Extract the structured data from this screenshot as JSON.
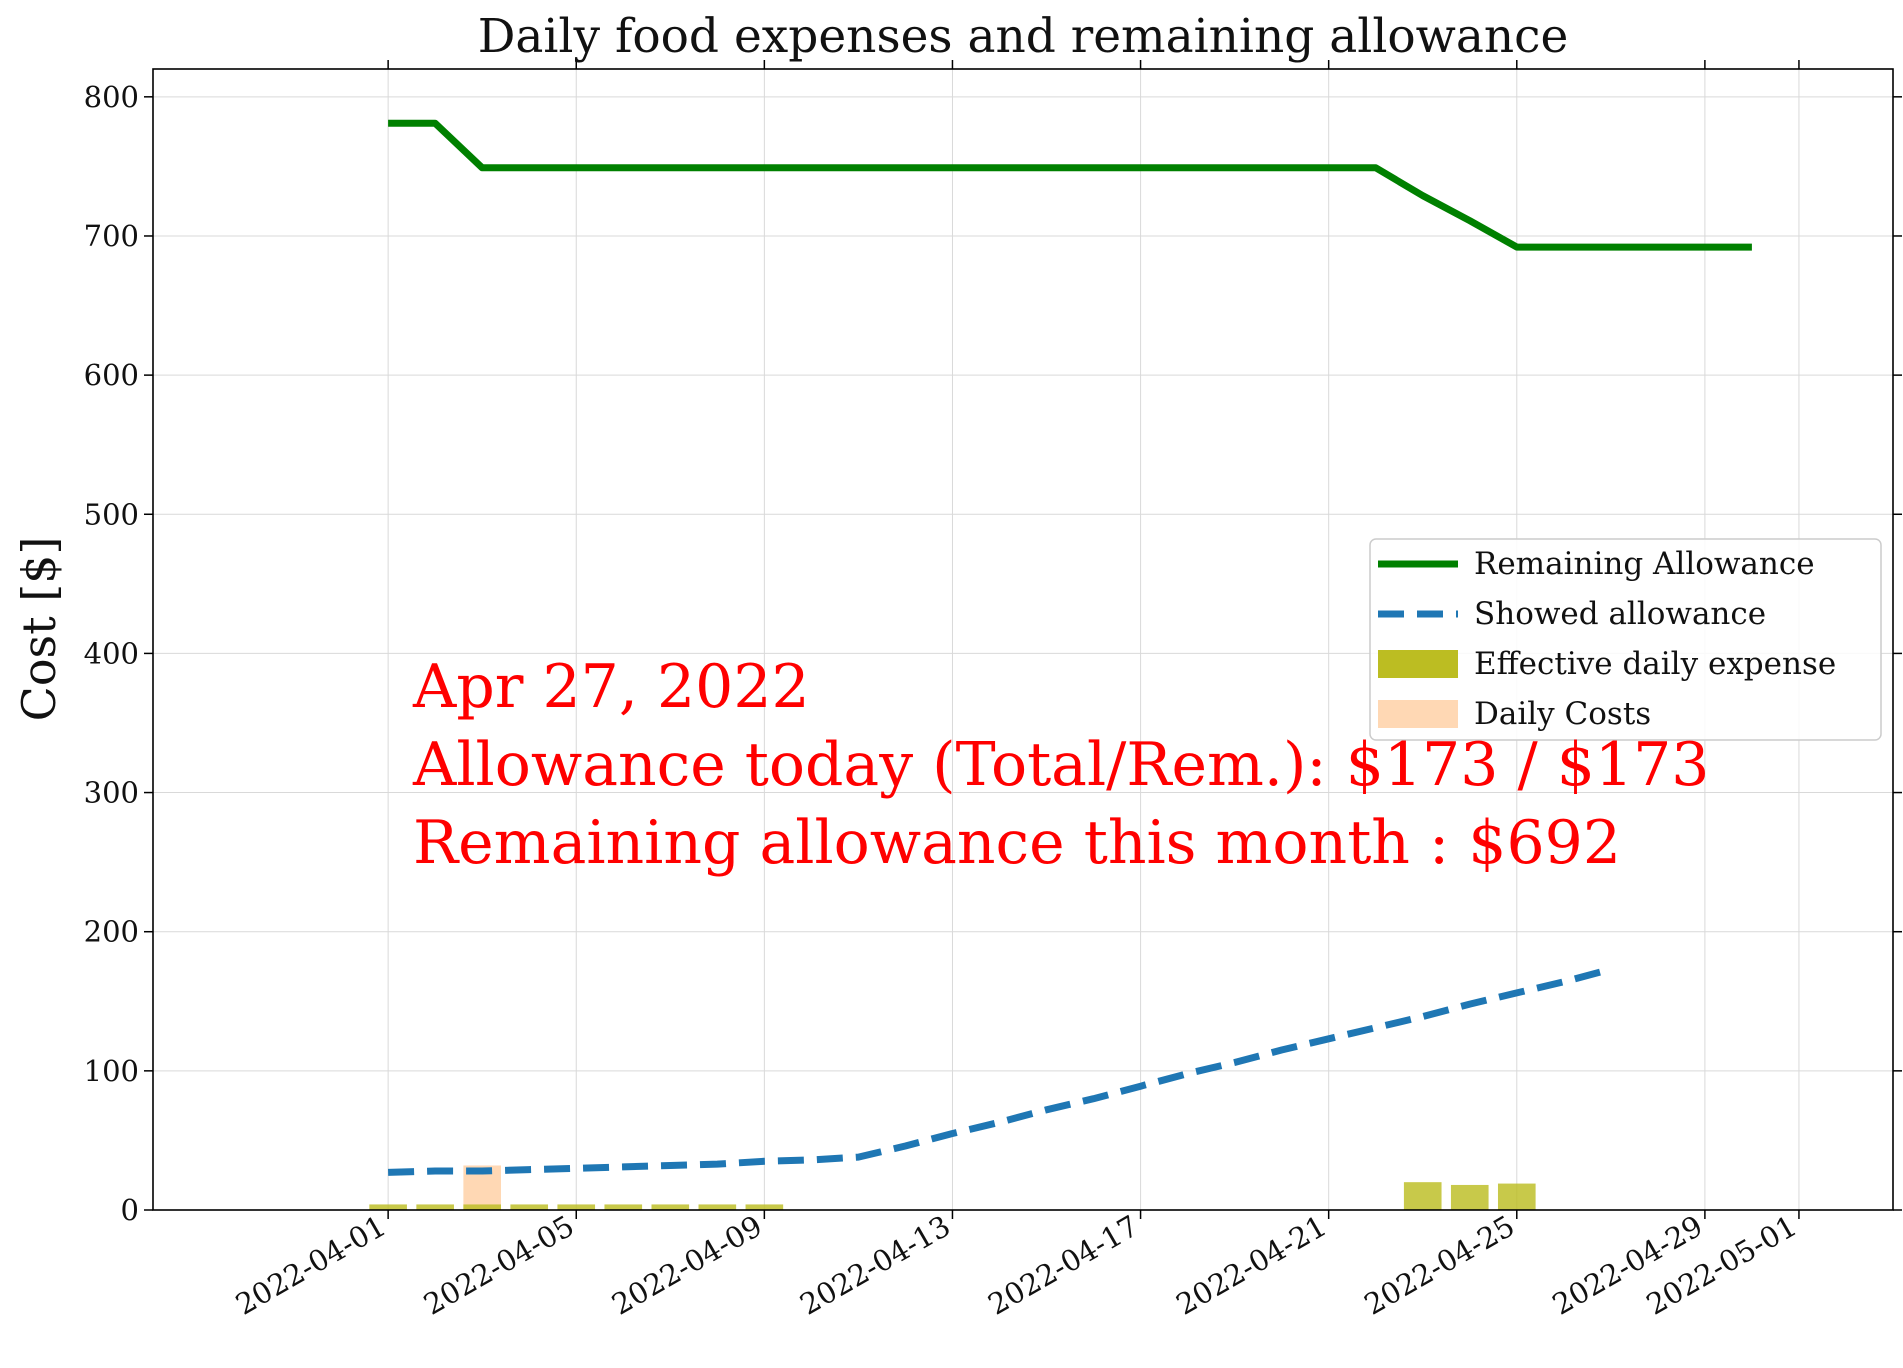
{
  "chart_data": {
    "type": "line",
    "title": "Daily food expenses and remaining allowance",
    "xlabel": "",
    "ylabel": "Cost [$]",
    "x_axis": {
      "type": "date",
      "range": [
        "2022-03-27",
        "2022-05-03"
      ],
      "tick_labels": [
        "2022-04-01",
        "2022-04-05",
        "2022-04-09",
        "2022-04-13",
        "2022-04-17",
        "2022-04-21",
        "2022-04-25",
        "2022-04-29",
        "2022-05-01"
      ]
    },
    "y_axis": {
      "range": [
        0,
        820
      ],
      "ticks": [
        0,
        100,
        200,
        300,
        400,
        500,
        600,
        700,
        800
      ],
      "tick_labels": [
        "0",
        "100",
        "200",
        "300",
        "400",
        "500",
        "600",
        "700",
        "800"
      ]
    },
    "grid": true,
    "legend_position": "center-right",
    "legend": [
      {
        "label": "Remaining Allowance",
        "kind": "line",
        "color": "#008000",
        "dash": false
      },
      {
        "label": "Showed allowance",
        "kind": "line",
        "color": "#1f77b4",
        "dash": true
      },
      {
        "label": "Effective daily expense",
        "kind": "bar",
        "color": "#bcbd22"
      },
      {
        "label": "Daily Costs",
        "kind": "bar",
        "color": "#ffd8b4"
      }
    ],
    "series": [
      {
        "name": "Remaining Allowance",
        "type": "line",
        "color": "#008000",
        "points": [
          [
            "2022-04-01",
            781
          ],
          [
            "2022-04-02",
            781
          ],
          [
            "2022-04-03",
            749
          ],
          [
            "2022-04-04",
            749
          ],
          [
            "2022-04-05",
            749
          ],
          [
            "2022-04-06",
            749
          ],
          [
            "2022-04-07",
            749
          ],
          [
            "2022-04-08",
            749
          ],
          [
            "2022-04-09",
            749
          ],
          [
            "2022-04-10",
            749
          ],
          [
            "2022-04-11",
            749
          ],
          [
            "2022-04-12",
            749
          ],
          [
            "2022-04-13",
            749
          ],
          [
            "2022-04-14",
            749
          ],
          [
            "2022-04-15",
            749
          ],
          [
            "2022-04-16",
            749
          ],
          [
            "2022-04-17",
            749
          ],
          [
            "2022-04-18",
            749
          ],
          [
            "2022-04-19",
            749
          ],
          [
            "2022-04-20",
            749
          ],
          [
            "2022-04-21",
            749
          ],
          [
            "2022-04-22",
            749
          ],
          [
            "2022-04-23",
            729
          ],
          [
            "2022-04-24",
            711
          ],
          [
            "2022-04-25",
            692
          ],
          [
            "2022-04-26",
            692
          ],
          [
            "2022-04-27",
            692
          ],
          [
            "2022-04-28",
            692
          ],
          [
            "2022-04-29",
            692
          ],
          [
            "2022-04-30",
            692
          ]
        ]
      },
      {
        "name": "Showed allowance",
        "type": "line",
        "dashed": true,
        "color": "#1f77b4",
        "points": [
          [
            "2022-04-01",
            27
          ],
          [
            "2022-04-02",
            28
          ],
          [
            "2022-04-03",
            28
          ],
          [
            "2022-04-04",
            29
          ],
          [
            "2022-04-05",
            30
          ],
          [
            "2022-04-06",
            31
          ],
          [
            "2022-04-07",
            32
          ],
          [
            "2022-04-08",
            33
          ],
          [
            "2022-04-09",
            35
          ],
          [
            "2022-04-10",
            36
          ],
          [
            "2022-04-11",
            38
          ],
          [
            "2022-04-12",
            46
          ],
          [
            "2022-04-13",
            55
          ],
          [
            "2022-04-14",
            63
          ],
          [
            "2022-04-15",
            72
          ],
          [
            "2022-04-16",
            80
          ],
          [
            "2022-04-17",
            89
          ],
          [
            "2022-04-18",
            98
          ],
          [
            "2022-04-19",
            106
          ],
          [
            "2022-04-20",
            115
          ],
          [
            "2022-04-21",
            123
          ],
          [
            "2022-04-22",
            131
          ],
          [
            "2022-04-23",
            139
          ],
          [
            "2022-04-24",
            148
          ],
          [
            "2022-04-25",
            156
          ],
          [
            "2022-04-26",
            164
          ],
          [
            "2022-04-27",
            173
          ]
        ]
      },
      {
        "name": "Daily Costs",
        "type": "bar",
        "color": "#ffd8b4",
        "points": [
          [
            "2022-04-03",
            32
          ]
        ]
      },
      {
        "name": "Effective daily expense",
        "type": "bar",
        "color": "#bcbd22",
        "points": [
          [
            "2022-04-01",
            4
          ],
          [
            "2022-04-02",
            4
          ],
          [
            "2022-04-03",
            4
          ],
          [
            "2022-04-04",
            4
          ],
          [
            "2022-04-05",
            4
          ],
          [
            "2022-04-06",
            4
          ],
          [
            "2022-04-07",
            4
          ],
          [
            "2022-04-08",
            4
          ],
          [
            "2022-04-09",
            4
          ],
          [
            "2022-04-23",
            20
          ],
          [
            "2022-04-24",
            18
          ],
          [
            "2022-04-25",
            19
          ]
        ]
      }
    ],
    "annotation": {
      "color": "#ff0000",
      "lines": [
        "Apr 27, 2022",
        "Allowance today (Total/Rem.): $173 / $173",
        "Remaining allowance this month : $692"
      ]
    }
  }
}
